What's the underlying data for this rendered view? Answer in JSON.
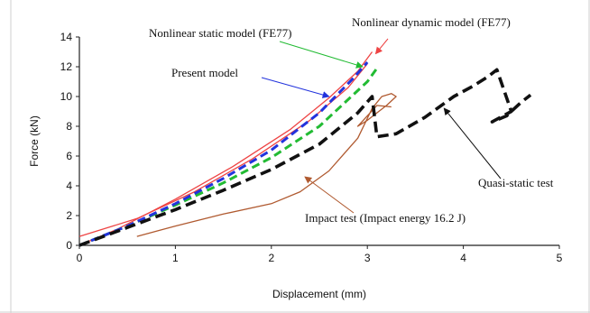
{
  "chart_data": {
    "type": "line",
    "title": "",
    "xlabel": "Displacement (mm)",
    "ylabel": "Force (kN)",
    "xlim": [
      0,
      5
    ],
    "ylim": [
      0,
      14
    ],
    "xticks": [
      "0",
      "1",
      "2",
      "3",
      "4",
      "5"
    ],
    "yticks": [
      "0",
      "2",
      "4",
      "6",
      "8",
      "10",
      "12",
      "14"
    ],
    "grid": false,
    "series": [
      {
        "name": "Nonlinear dynamic model (FE77)",
        "color": "#ee4444",
        "style": "solid",
        "x": [
          0,
          0.4,
          1.0,
          1.6,
          2.2,
          2.6,
          2.9,
          3.05
        ],
        "y": [
          0,
          1.1,
          3.1,
          5.3,
          7.8,
          9.9,
          11.7,
          13.0
        ]
      },
      {
        "name": "",
        "color": "#ee4444",
        "style": "solid",
        "x": [
          0,
          0.6,
          1.2,
          1.8,
          2.4,
          2.8,
          3.0
        ],
        "y": [
          0.6,
          1.8,
          3.6,
          5.8,
          8.4,
          10.6,
          12.2
        ]
      },
      {
        "name": "Nonlinear static model (FE77)",
        "color": "#22bb33",
        "style": "dashed",
        "x": [
          0,
          0.5,
          1.0,
          1.5,
          2.0,
          2.5,
          3.0,
          3.1
        ],
        "y": [
          0,
          1.3,
          2.7,
          4.2,
          5.9,
          8.0,
          11.0,
          11.9
        ]
      },
      {
        "name": "Present model",
        "color": "#2233dd",
        "style": "dashed",
        "x": [
          0,
          0.5,
          1.0,
          1.5,
          2.0,
          2.5,
          2.85,
          3.0
        ],
        "y": [
          0,
          1.3,
          2.8,
          4.5,
          6.4,
          8.9,
          11.2,
          12.3
        ]
      },
      {
        "name": "Quasi-static test",
        "color": "#111111",
        "style": "dashed",
        "x": [
          0,
          0.5,
          1.0,
          1.5,
          2.0,
          2.5,
          2.9,
          3.05,
          3.1,
          3.3,
          3.6,
          3.9,
          4.1,
          4.25,
          4.35,
          4.5,
          4.3,
          4.45,
          4.6,
          4.7
        ],
        "y": [
          0,
          1.2,
          2.4,
          3.7,
          5.1,
          6.8,
          8.9,
          10.0,
          7.3,
          7.5,
          8.6,
          10.0,
          10.7,
          11.3,
          11.8,
          9.0,
          8.3,
          8.7,
          9.6,
          10.1
        ]
      },
      {
        "name": "Impact test (Impact energy 16.2 J)",
        "color": "#b05a30",
        "style": "solid",
        "x": [
          0.6,
          1.0,
          1.5,
          2.0,
          2.3,
          2.6,
          2.9,
          3.05,
          3.15,
          3.25,
          3.3,
          3.2,
          3.1,
          3.0,
          2.9,
          3.1,
          3.25
        ],
        "y": [
          0.6,
          1.3,
          2.1,
          2.8,
          3.6,
          5.0,
          7.2,
          9.2,
          10.0,
          10.2,
          10.0,
          9.4,
          8.9,
          8.4,
          8.0,
          9.4,
          9.3
        ]
      }
    ],
    "annotations": [
      {
        "text": "Nonlinear dynamic model (FE77)",
        "series": 0
      },
      {
        "text": "Nonlinear static model (FE77)",
        "series": 2
      },
      {
        "text": "Present model",
        "series": 3
      },
      {
        "text": "Quasi-static test",
        "series": 4
      },
      {
        "text": "Impact test (Impact energy 16.2 J)",
        "series": 5
      }
    ]
  }
}
